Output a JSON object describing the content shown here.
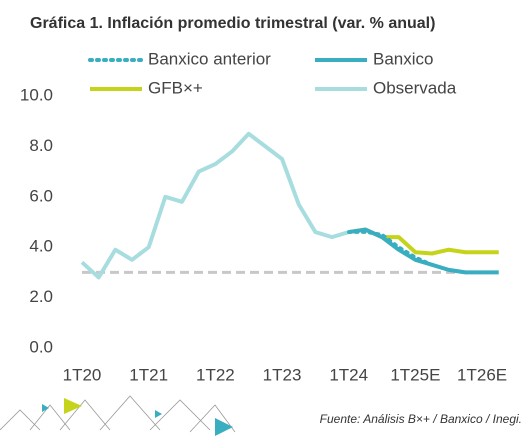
{
  "chart_data": {
    "type": "line",
    "title": "Gráfica 1. Inflación promedio trimestral (var. % anual)",
    "source": "Fuente: Análisis B×+ /  Banxico / Inegi.",
    "categories": [
      "1T20",
      null,
      null,
      null,
      "1T21",
      null,
      null,
      null,
      "1T22",
      null,
      null,
      null,
      "1T23",
      null,
      null,
      null,
      "1T24",
      null,
      null,
      null,
      "1T25E",
      null,
      null,
      null,
      "1T26E",
      null
    ],
    "series": [
      {
        "name": "Banxico anterior",
        "color": "#3aaec1",
        "dash": "dotted",
        "values": [
          null,
          null,
          null,
          null,
          null,
          null,
          null,
          null,
          null,
          null,
          null,
          null,
          null,
          null,
          null,
          null,
          4.6,
          4.6,
          4.5,
          4.0,
          3.6,
          3.3,
          3.1,
          3.0,
          3.0,
          3.0
        ]
      },
      {
        "name": "Banxico",
        "color": "#3aaec1",
        "dash": "solid",
        "values": [
          null,
          null,
          null,
          null,
          null,
          null,
          null,
          null,
          null,
          null,
          null,
          null,
          null,
          null,
          null,
          null,
          4.6,
          4.7,
          4.4,
          3.9,
          3.5,
          3.3,
          3.1,
          3.0,
          3.0,
          3.0
        ]
      },
      {
        "name": "GFB×+",
        "color": "#c5d41a",
        "dash": "solid",
        "values": [
          null,
          null,
          null,
          null,
          null,
          null,
          null,
          null,
          null,
          null,
          null,
          null,
          null,
          null,
          null,
          null,
          4.6,
          4.7,
          4.4,
          4.4,
          3.8,
          3.75,
          3.9,
          3.8,
          3.8,
          3.8
        ]
      },
      {
        "name": "Observada",
        "color": "#a8dde0",
        "dash": "solid",
        "values": [
          3.4,
          2.8,
          3.9,
          3.5,
          4.0,
          6.0,
          5.8,
          7.0,
          7.3,
          7.8,
          8.5,
          8.0,
          7.5,
          5.7,
          4.6,
          4.4,
          4.6,
          4.7,
          null,
          null,
          null,
          null,
          null,
          null,
          null,
          null
        ]
      }
    ],
    "reference_line": 3,
    "reference_color": "#c8c8c8",
    "ylim": [
      0,
      10
    ],
    "yticks": [
      {
        "value": 0,
        "label": "0.0"
      },
      {
        "value": 2,
        "label": "2.0"
      },
      {
        "value": 4,
        "label": "4.0"
      },
      {
        "value": 6,
        "label": "6.0"
      },
      {
        "value": 8,
        "label": "8.0"
      },
      {
        "value": 10,
        "label": "10.0"
      }
    ],
    "grid": false
  }
}
